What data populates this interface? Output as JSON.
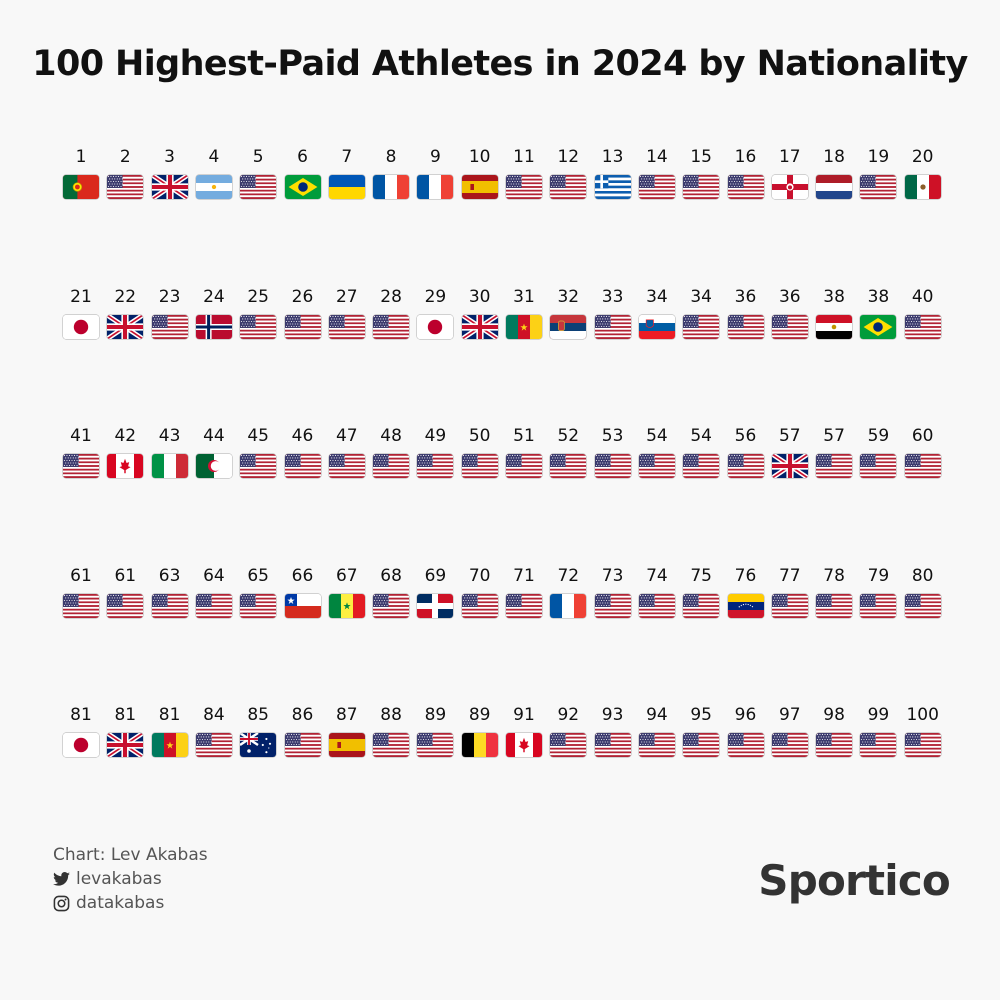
{
  "header": {
    "title": "100 Highest-Paid Athletes in 2024 by Nationality"
  },
  "colors": {
    "usa_red": "#b22234",
    "usa_blue": "#3c3b6e",
    "uk_blue": "#012169",
    "uk_red": "#c8102e",
    "green_pt": "#046a38",
    "brazil_green": "#009c3b",
    "brazil_yellow": "#ffdf00"
  },
  "chart_data": {
    "type": "table",
    "title": "100 Highest-Paid Athletes in 2024 by Nationality",
    "entries": [
      {
        "rank": "1",
        "flag": "portugal"
      },
      {
        "rank": "2",
        "flag": "usa"
      },
      {
        "rank": "3",
        "flag": "uk"
      },
      {
        "rank": "4",
        "flag": "argentina"
      },
      {
        "rank": "5",
        "flag": "usa"
      },
      {
        "rank": "6",
        "flag": "brazil"
      },
      {
        "rank": "7",
        "flag": "ukraine"
      },
      {
        "rank": "8",
        "flag": "france"
      },
      {
        "rank": "9",
        "flag": "france"
      },
      {
        "rank": "10",
        "flag": "spain"
      },
      {
        "rank": "11",
        "flag": "usa"
      },
      {
        "rank": "12",
        "flag": "usa"
      },
      {
        "rank": "13",
        "flag": "greece"
      },
      {
        "rank": "14",
        "flag": "usa"
      },
      {
        "rank": "15",
        "flag": "usa"
      },
      {
        "rank": "16",
        "flag": "usa"
      },
      {
        "rank": "17",
        "flag": "northern-ireland"
      },
      {
        "rank": "18",
        "flag": "netherlands"
      },
      {
        "rank": "19",
        "flag": "usa"
      },
      {
        "rank": "20",
        "flag": "mexico"
      },
      {
        "rank": "21",
        "flag": "japan"
      },
      {
        "rank": "22",
        "flag": "uk"
      },
      {
        "rank": "23",
        "flag": "usa"
      },
      {
        "rank": "24",
        "flag": "norway"
      },
      {
        "rank": "25",
        "flag": "usa"
      },
      {
        "rank": "26",
        "flag": "usa"
      },
      {
        "rank": "27",
        "flag": "usa"
      },
      {
        "rank": "28",
        "flag": "usa"
      },
      {
        "rank": "29",
        "flag": "japan"
      },
      {
        "rank": "30",
        "flag": "uk"
      },
      {
        "rank": "31",
        "flag": "cameroon"
      },
      {
        "rank": "32",
        "flag": "serbia"
      },
      {
        "rank": "33",
        "flag": "usa"
      },
      {
        "rank": "34",
        "flag": "slovenia"
      },
      {
        "rank": "34",
        "flag": "usa"
      },
      {
        "rank": "36",
        "flag": "usa"
      },
      {
        "rank": "36",
        "flag": "usa"
      },
      {
        "rank": "38",
        "flag": "egypt"
      },
      {
        "rank": "38",
        "flag": "brazil"
      },
      {
        "rank": "40",
        "flag": "usa"
      },
      {
        "rank": "41",
        "flag": "usa"
      },
      {
        "rank": "42",
        "flag": "canada"
      },
      {
        "rank": "43",
        "flag": "italy"
      },
      {
        "rank": "44",
        "flag": "algeria"
      },
      {
        "rank": "45",
        "flag": "usa"
      },
      {
        "rank": "46",
        "flag": "usa"
      },
      {
        "rank": "47",
        "flag": "usa"
      },
      {
        "rank": "48",
        "flag": "usa"
      },
      {
        "rank": "49",
        "flag": "usa"
      },
      {
        "rank": "50",
        "flag": "usa"
      },
      {
        "rank": "51",
        "flag": "usa"
      },
      {
        "rank": "52",
        "flag": "usa"
      },
      {
        "rank": "53",
        "flag": "usa"
      },
      {
        "rank": "54",
        "flag": "usa"
      },
      {
        "rank": "54",
        "flag": "usa"
      },
      {
        "rank": "56",
        "flag": "usa"
      },
      {
        "rank": "57",
        "flag": "uk"
      },
      {
        "rank": "57",
        "flag": "usa"
      },
      {
        "rank": "59",
        "flag": "usa"
      },
      {
        "rank": "60",
        "flag": "usa"
      },
      {
        "rank": "61",
        "flag": "usa"
      },
      {
        "rank": "61",
        "flag": "usa"
      },
      {
        "rank": "63",
        "flag": "usa"
      },
      {
        "rank": "64",
        "flag": "usa"
      },
      {
        "rank": "65",
        "flag": "usa"
      },
      {
        "rank": "66",
        "flag": "chile"
      },
      {
        "rank": "67",
        "flag": "senegal"
      },
      {
        "rank": "68",
        "flag": "usa"
      },
      {
        "rank": "69",
        "flag": "dominican-republic"
      },
      {
        "rank": "70",
        "flag": "usa"
      },
      {
        "rank": "71",
        "flag": "usa"
      },
      {
        "rank": "72",
        "flag": "france"
      },
      {
        "rank": "73",
        "flag": "usa"
      },
      {
        "rank": "74",
        "flag": "usa"
      },
      {
        "rank": "75",
        "flag": "usa"
      },
      {
        "rank": "76",
        "flag": "venezuela"
      },
      {
        "rank": "77",
        "flag": "usa"
      },
      {
        "rank": "78",
        "flag": "usa"
      },
      {
        "rank": "79",
        "flag": "usa"
      },
      {
        "rank": "80",
        "flag": "usa"
      },
      {
        "rank": "81",
        "flag": "japan"
      },
      {
        "rank": "81",
        "flag": "uk"
      },
      {
        "rank": "81",
        "flag": "cameroon"
      },
      {
        "rank": "84",
        "flag": "usa"
      },
      {
        "rank": "85",
        "flag": "australia"
      },
      {
        "rank": "86",
        "flag": "usa"
      },
      {
        "rank": "87",
        "flag": "spain"
      },
      {
        "rank": "88",
        "flag": "usa"
      },
      {
        "rank": "89",
        "flag": "usa"
      },
      {
        "rank": "89",
        "flag": "belgium"
      },
      {
        "rank": "91",
        "flag": "canada"
      },
      {
        "rank": "92",
        "flag": "usa"
      },
      {
        "rank": "93",
        "flag": "usa"
      },
      {
        "rank": "94",
        "flag": "usa"
      },
      {
        "rank": "95",
        "flag": "usa"
      },
      {
        "rank": "96",
        "flag": "usa"
      },
      {
        "rank": "97",
        "flag": "usa"
      },
      {
        "rank": "98",
        "flag": "usa"
      },
      {
        "rank": "99",
        "flag": "usa"
      },
      {
        "rank": "100",
        "flag": "usa"
      }
    ]
  },
  "footer": {
    "credit": "Chart: Lev Akabas",
    "twitter_handle": "levakabas",
    "twitter_icon": "twitter-icon",
    "instagram_handle": "datakabas",
    "instagram_icon": "instagram-icon",
    "brand": "Sportico"
  }
}
